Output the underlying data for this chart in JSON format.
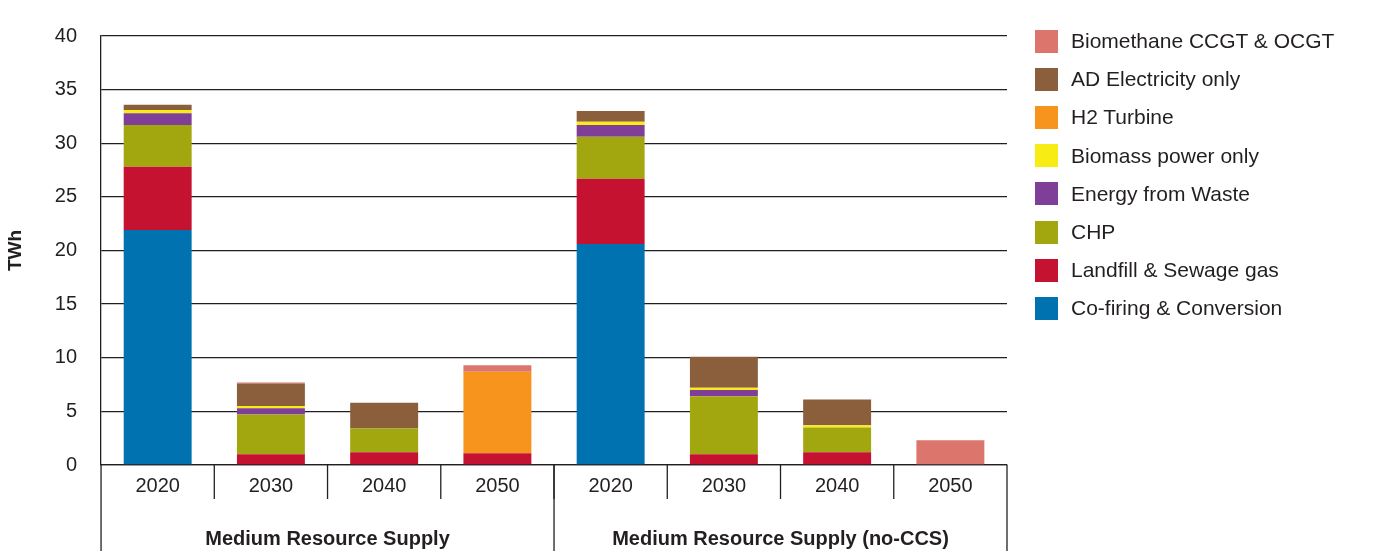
{
  "chart_data": {
    "type": "bar",
    "stacked": true,
    "ylabel": "TWh",
    "ylim": [
      0,
      40
    ],
    "yticks": [
      0,
      5,
      10,
      15,
      20,
      25,
      30,
      35,
      40
    ],
    "grid": "y",
    "legend": "right",
    "categories": [
      "2020",
      "2030",
      "2040",
      "2050",
      "2020",
      "2030",
      "2040",
      "2050"
    ],
    "annotations": [
      "Medium Resource Supply",
      "Medium Resource Supply (no-CCS)"
    ],
    "series": [
      {
        "name": "Co-firing & Conversion",
        "color": "#0072b0",
        "values": [
          21.9,
          0,
          0,
          0,
          20.6,
          0,
          0,
          0
        ]
      },
      {
        "name": "Landfill & Sewage gas",
        "color": "#c41230",
        "values": [
          5.9,
          1,
          1.2,
          1.1,
          6.1,
          1,
          1.2,
          0
        ]
      },
      {
        "name": "CHP",
        "color": "#a3a70f",
        "values": [
          3.9,
          3.7,
          2.2,
          0,
          3.9,
          5.4,
          2.3,
          0
        ]
      },
      {
        "name": "Energy from Waste",
        "color": "#7f3f98",
        "values": [
          1.1,
          0.6,
          0,
          0,
          1.1,
          0.6,
          0,
          0
        ]
      },
      {
        "name": "Biomass power only",
        "color": "#f7ec13",
        "values": [
          0.3,
          0.2,
          0,
          0,
          0.3,
          0.2,
          0.2,
          0
        ]
      },
      {
        "name": "H2 Turbine",
        "color": "#f7941d",
        "values": [
          0,
          0,
          0,
          7.6,
          0,
          0,
          0,
          0
        ]
      },
      {
        "name": "AD Electricity only",
        "color": "#8b5e3c",
        "values": [
          0.5,
          2.1,
          2.4,
          0,
          1,
          2.9,
          2.4,
          0
        ]
      },
      {
        "name": "Biomethane CCGT & OCGT",
        "color": "#dc756b",
        "values": [
          0,
          0.1,
          0,
          0.6,
          0,
          0,
          0,
          2.3
        ]
      }
    ]
  }
}
